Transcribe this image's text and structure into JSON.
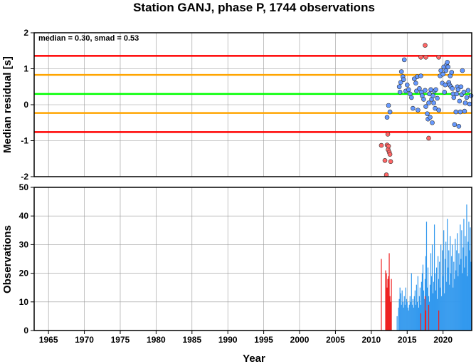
{
  "chart_data": [
    {
      "type": "scatter",
      "title": "Station GANJ, phase P, 1744 observations",
      "ylabel": "Median residual [s]",
      "annotation": "median = 0.30, smad = 0.53",
      "xlim": [
        1963,
        2024
      ],
      "ylim": [
        -2,
        2
      ],
      "yticks": [
        2,
        1,
        0,
        -1,
        -2
      ],
      "grid": true,
      "reference_lines": [
        {
          "y": 1.36,
          "color": "#ff0000"
        },
        {
          "y": 0.83,
          "color": "#ffa500"
        },
        {
          "y": 0.3,
          "color": "#00ff00"
        },
        {
          "y": -0.23,
          "color": "#ffa500"
        },
        {
          "y": -0.76,
          "color": "#ff0000"
        }
      ],
      "series": [
        {
          "color": "#ff6666",
          "points": [
            [
              2011.4,
              -1.13
            ],
            [
              2011.9,
              -1.55
            ],
            [
              2012.1,
              -1.95
            ],
            [
              2012.2,
              -1.12
            ],
            [
              2012.3,
              -0.82
            ],
            [
              2012.35,
              -1.25
            ],
            [
              2012.4,
              -1.15
            ],
            [
              2012.5,
              -1.32
            ],
            [
              2012.6,
              -1.38
            ],
            [
              2012.7,
              -1.58
            ],
            [
              2016.9,
              1.32
            ],
            [
              2017.5,
              1.65
            ],
            [
              2017.6,
              1.32
            ],
            [
              2018.0,
              -0.93
            ],
            [
              2019.4,
              1.32
            ]
          ]
        },
        {
          "color": "#6699ff",
          "points": [
            [
              2012.2,
              -0.35
            ],
            [
              2012.4,
              -0.02
            ],
            [
              2012.6,
              -0.2
            ],
            [
              2013.9,
              0.5
            ],
            [
              2014.0,
              0.35
            ],
            [
              2014.1,
              0.62
            ],
            [
              2014.2,
              0.92
            ],
            [
              2014.4,
              0.78
            ],
            [
              2014.5,
              0.7
            ],
            [
              2014.6,
              1.25
            ],
            [
              2014.8,
              0.38
            ],
            [
              2015.0,
              0.55
            ],
            [
              2015.2,
              0.42
            ],
            [
              2015.4,
              0.3
            ],
            [
              2015.6,
              0.2
            ],
            [
              2015.8,
              -0.1
            ],
            [
              2016.0,
              0.72
            ],
            [
              2016.2,
              0.6
            ],
            [
              2016.3,
              0.38
            ],
            [
              2016.4,
              0.78
            ],
            [
              2016.5,
              -0.15
            ],
            [
              2016.7,
              0.45
            ],
            [
              2016.9,
              0.8
            ],
            [
              2017.0,
              0.35
            ],
            [
              2017.1,
              0.25
            ],
            [
              2017.3,
              0.15
            ],
            [
              2017.5,
              0.4
            ],
            [
              2017.6,
              -0.05
            ],
            [
              2017.8,
              -0.25
            ],
            [
              2017.9,
              -0.4
            ],
            [
              2018.0,
              0.05
            ],
            [
              2018.1,
              0.3
            ],
            [
              2018.2,
              -0.35
            ],
            [
              2018.3,
              0.42
            ],
            [
              2018.4,
              0.15
            ],
            [
              2018.5,
              -0.5
            ],
            [
              2018.6,
              0.25
            ],
            [
              2018.7,
              0.05
            ],
            [
              2018.8,
              0.38
            ],
            [
              2018.9,
              -0.1
            ],
            [
              2019.0,
              0.42
            ],
            [
              2019.2,
              0.18
            ],
            [
              2019.4,
              -0.15
            ],
            [
              2019.6,
              0.8
            ],
            [
              2019.7,
              0.95
            ],
            [
              2019.9,
              0.6
            ],
            [
              2020.0,
              0.85
            ],
            [
              2020.1,
              1.05
            ],
            [
              2020.2,
              0.35
            ],
            [
              2020.3,
              0.55
            ],
            [
              2020.4,
              0.95
            ],
            [
              2020.5,
              1.12
            ],
            [
              2020.6,
              1.18
            ],
            [
              2020.7,
              1.05
            ],
            [
              2020.8,
              0.62
            ],
            [
              2020.9,
              0.55
            ],
            [
              2021.0,
              0.8
            ],
            [
              2021.1,
              0.5
            ],
            [
              2021.2,
              0.9
            ],
            [
              2021.3,
              0.45
            ],
            [
              2021.4,
              0.3
            ],
            [
              2021.5,
              0.2
            ],
            [
              2021.6,
              -0.55
            ],
            [
              2021.8,
              -0.2
            ],
            [
              2021.9,
              0.3
            ],
            [
              2022.0,
              0.5
            ],
            [
              2022.1,
              0.42
            ],
            [
              2022.2,
              -0.6
            ],
            [
              2022.3,
              0.1
            ],
            [
              2022.4,
              -0.2
            ],
            [
              2022.5,
              0.5
            ],
            [
              2022.6,
              0.28
            ],
            [
              2022.7,
              0.95
            ],
            [
              2022.9,
              0.35
            ],
            [
              2023.0,
              -0.18
            ],
            [
              2023.1,
              0.05
            ],
            [
              2023.3,
              0.2
            ],
            [
              2023.5,
              0.4
            ],
            [
              2023.7,
              0.02
            ],
            [
              2023.9,
              0.25
            ]
          ]
        }
      ]
    },
    {
      "type": "bar",
      "xlabel": "Year",
      "ylabel": "Observations",
      "xlim": [
        1963,
        2024
      ],
      "ylim": [
        0,
        50
      ],
      "xticks": [
        1965,
        1970,
        1975,
        1980,
        1985,
        1990,
        1995,
        2000,
        2005,
        2010,
        2015,
        2020
      ],
      "yticks": [
        0,
        10,
        20,
        30,
        40,
        50
      ],
      "grid": true,
      "series": [
        {
          "color": "#ee2222",
          "bars": [
            [
              2011.4,
              25
            ],
            [
              2012.0,
              21
            ],
            [
              2012.1,
              20
            ],
            [
              2012.2,
              15
            ],
            [
              2012.3,
              18
            ],
            [
              2012.4,
              19
            ],
            [
              2012.5,
              27
            ],
            [
              2012.6,
              12
            ],
            [
              2012.7,
              10
            ],
            [
              2012.8,
              18
            ],
            [
              2016.9,
              6
            ],
            [
              2017.5,
              12
            ],
            [
              2017.6,
              7
            ],
            [
              2018.0,
              9
            ],
            [
              2019.4,
              7
            ]
          ]
        },
        {
          "color": "#3399ee",
          "bars": [
            [
              2012.2,
              5
            ],
            [
              2012.4,
              6
            ],
            [
              2013.6,
              5
            ],
            [
              2013.8,
              8
            ],
            [
              2013.9,
              11
            ],
            [
              2014.0,
              15
            ],
            [
              2014.1,
              13
            ],
            [
              2014.2,
              9
            ],
            [
              2014.3,
              14
            ],
            [
              2014.4,
              10
            ],
            [
              2014.5,
              8
            ],
            [
              2014.6,
              12
            ],
            [
              2014.7,
              9
            ],
            [
              2014.8,
              15
            ],
            [
              2014.9,
              11
            ],
            [
              2015.0,
              10
            ],
            [
              2015.1,
              8
            ],
            [
              2015.2,
              7
            ],
            [
              2015.3,
              9
            ],
            [
              2015.4,
              12
            ],
            [
              2015.5,
              10
            ],
            [
              2015.6,
              20
            ],
            [
              2015.7,
              9
            ],
            [
              2015.8,
              11
            ],
            [
              2015.9,
              8
            ],
            [
              2016.0,
              12
            ],
            [
              2016.1,
              14
            ],
            [
              2016.2,
              9
            ],
            [
              2016.3,
              16
            ],
            [
              2016.4,
              10
            ],
            [
              2016.5,
              19
            ],
            [
              2016.6,
              8
            ],
            [
              2016.7,
              12
            ],
            [
              2016.8,
              15
            ],
            [
              2016.9,
              9
            ],
            [
              2017.0,
              17
            ],
            [
              2017.1,
              20
            ],
            [
              2017.2,
              23
            ],
            [
              2017.3,
              14
            ],
            [
              2017.4,
              11
            ],
            [
              2017.5,
              18
            ],
            [
              2017.6,
              26
            ],
            [
              2017.7,
              38
            ],
            [
              2017.8,
              15
            ],
            [
              2017.9,
              22
            ],
            [
              2018.0,
              12
            ],
            [
              2018.1,
              10
            ],
            [
              2018.2,
              16
            ],
            [
              2018.3,
              27
            ],
            [
              2018.4,
              19
            ],
            [
              2018.5,
              30
            ],
            [
              2018.6,
              13
            ],
            [
              2018.7,
              17
            ],
            [
              2018.8,
              37
            ],
            [
              2018.9,
              20
            ],
            [
              2019.0,
              14
            ],
            [
              2019.1,
              22
            ],
            [
              2019.2,
              11
            ],
            [
              2019.3,
              26
            ],
            [
              2019.4,
              18
            ],
            [
              2019.5,
              24
            ],
            [
              2019.6,
              15
            ],
            [
              2019.7,
              30
            ],
            [
              2019.8,
              12
            ],
            [
              2019.9,
              28
            ],
            [
              2020.0,
              19
            ],
            [
              2020.1,
              35
            ],
            [
              2020.2,
              13
            ],
            [
              2020.3,
              25
            ],
            [
              2020.4,
              31
            ],
            [
              2020.5,
              17
            ],
            [
              2020.6,
              39
            ],
            [
              2020.7,
              22
            ],
            [
              2020.8,
              28
            ],
            [
              2020.9,
              16
            ],
            [
              2021.0,
              33
            ],
            [
              2021.1,
              20
            ],
            [
              2021.2,
              26
            ],
            [
              2021.3,
              30
            ],
            [
              2021.4,
              15
            ],
            [
              2021.5,
              24
            ],
            [
              2021.6,
              18
            ],
            [
              2021.7,
              32
            ],
            [
              2021.8,
              21
            ],
            [
              2021.9,
              28
            ],
            [
              2022.0,
              34
            ],
            [
              2022.1,
              19
            ],
            [
              2022.2,
              27
            ],
            [
              2022.3,
              23
            ],
            [
              2022.4,
              37
            ],
            [
              2022.5,
              25
            ],
            [
              2022.6,
              35
            ],
            [
              2022.7,
              20
            ],
            [
              2022.8,
              29
            ],
            [
              2022.9,
              39
            ],
            [
              2023.0,
              22
            ],
            [
              2023.1,
              33
            ],
            [
              2023.2,
              26
            ],
            [
              2023.3,
              44
            ],
            [
              2023.4,
              19
            ],
            [
              2023.5,
              31
            ],
            [
              2023.6,
              38
            ],
            [
              2023.7,
              28
            ],
            [
              2023.8,
              36
            ],
            [
              2023.9,
              24
            ]
          ]
        }
      ]
    }
  ]
}
